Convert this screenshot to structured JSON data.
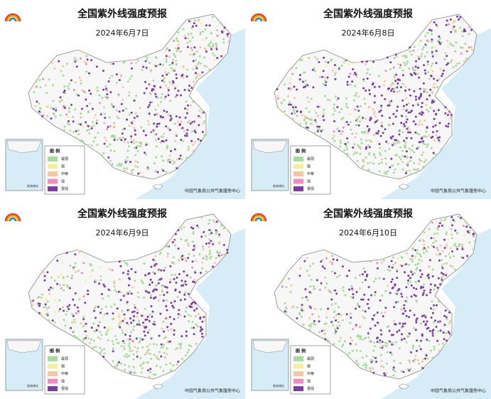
{
  "panels": [
    {
      "title": "全国紫外线强度预报",
      "date": "2024年6月7日",
      "legend_title": "图 例",
      "legend": [
        "最弱",
        "弱",
        "中等",
        "强",
        "很强"
      ],
      "inset_label": "南海诸岛",
      "source": "中国气象局公共气象服务中心"
    },
    {
      "title": "全国紫外线强度预报",
      "date": "2024年6月8日",
      "legend_title": "图 例",
      "legend": [
        "最弱",
        "弱",
        "中等",
        "强",
        "很强"
      ],
      "inset_label": "南海诸岛",
      "source": "中国气象局公共气象服务中心"
    },
    {
      "title": "全国紫外线强度预报",
      "date": "2024年6月9日",
      "legend_title": "图 例",
      "legend": [
        "最弱",
        "弱",
        "中等",
        "强",
        "很强"
      ],
      "inset_label": "南海诸岛",
      "source": "中国气象局公共气象服务中心"
    },
    {
      "title": "全国紫外线强度预报",
      "date": "2024年6月10日",
      "legend_title": "图 例",
      "legend": [
        "最弱",
        "弱",
        "中等",
        "强",
        "很强"
      ],
      "inset_label": "南海诸岛",
      "source": "中国气象局公共气象服务中心"
    }
  ]
}
